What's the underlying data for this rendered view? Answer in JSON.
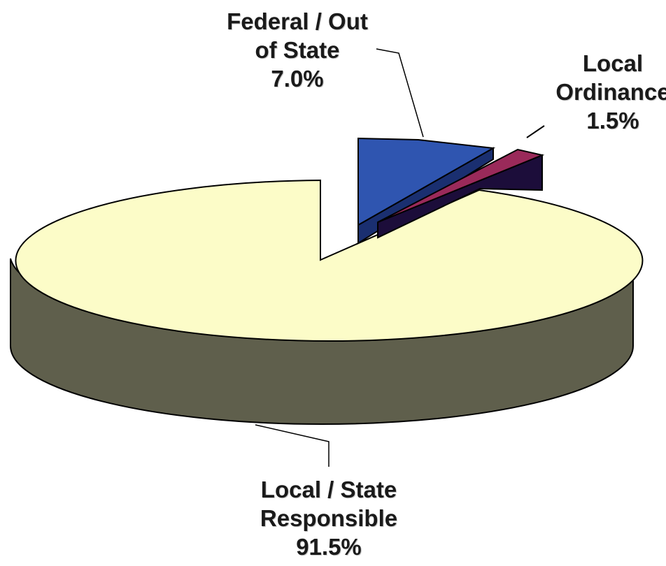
{
  "chart_data": {
    "type": "pie",
    "style": "3d-exploded",
    "slices": [
      {
        "name_lines": [
          "Local / State",
          "Responsible"
        ],
        "value_label": "91.5%",
        "value": 91.5,
        "top_color": "#fcfcc8",
        "side_color": "#5f5f4c"
      },
      {
        "name_lines": [
          "Federal / Out",
          "of State"
        ],
        "value_label": "7.0%",
        "value": 7.0,
        "top_color": "#2f55b0",
        "side_color": "#1a2f70"
      },
      {
        "name_lines": [
          "Local",
          "Ordinance"
        ],
        "value_label": "1.5%",
        "value": 1.5,
        "top_color": "#9a2a5a",
        "side_color": "#1c0d3a"
      }
    ],
    "legend": "none"
  }
}
